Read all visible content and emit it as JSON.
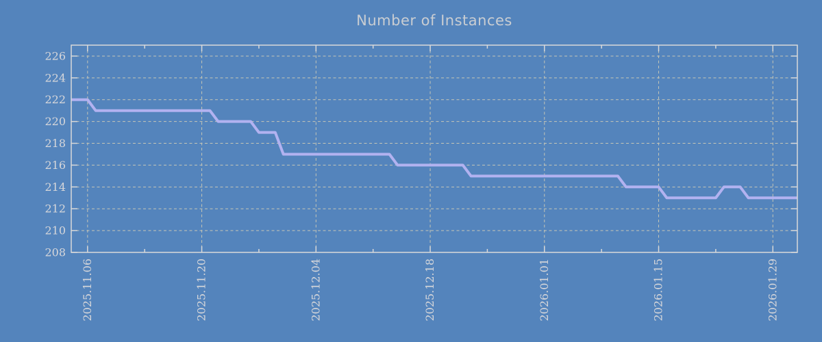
{
  "title": "Number of Instances",
  "colors": {
    "background": "#5484BC",
    "line": "#B2B2F0",
    "grid": "#C6C6B6",
    "spine": "#D9D9D9",
    "tick_label": "#D7D7DA",
    "title": "#C9CDD2"
  },
  "chart_data": {
    "type": "line",
    "title": "Number of Instances",
    "xlabel": "",
    "ylabel": "",
    "grid": true,
    "legend": null,
    "xlim": [
      "2025-11-04",
      "2026-02-01"
    ],
    "ylim": [
      208,
      227
    ],
    "y_ticks": [
      208,
      210,
      212,
      214,
      216,
      218,
      220,
      222,
      224,
      226
    ],
    "x_ticks": [
      {
        "date": "2025-11-06",
        "label": "2025.11.06"
      },
      {
        "date": "2025-11-20",
        "label": "2025.11.20"
      },
      {
        "date": "2025-12-04",
        "label": "2025.12.04"
      },
      {
        "date": "2025-12-18",
        "label": "2025.12.18"
      },
      {
        "date": "2026-01-01",
        "label": "2026.01.01"
      },
      {
        "date": "2026-01-15",
        "label": "2026.01.15"
      },
      {
        "date": "2026-01-29",
        "label": "2026.01.29"
      }
    ],
    "x_minor_ticks": [
      "2025-11-13",
      "2025-11-27",
      "2025-12-11",
      "2025-12-25",
      "2026-01-08",
      "2026-01-22"
    ],
    "series": [
      {
        "name": "instances",
        "color": "#B2B2F0",
        "interpolation": "linear-daily",
        "points": [
          [
            "2025-11-04",
            222
          ],
          [
            "2025-11-06",
            222
          ],
          [
            "2025-11-07",
            221
          ],
          [
            "2025-11-21",
            221
          ],
          [
            "2025-11-22",
            220
          ],
          [
            "2025-11-26",
            220
          ],
          [
            "2025-11-27",
            219
          ],
          [
            "2025-11-29",
            219
          ],
          [
            "2025-11-30",
            217
          ],
          [
            "2025-12-13",
            217
          ],
          [
            "2025-12-14",
            216
          ],
          [
            "2025-12-22",
            216
          ],
          [
            "2025-12-23",
            215
          ],
          [
            "2026-01-10",
            215
          ],
          [
            "2026-01-11",
            214
          ],
          [
            "2026-01-15",
            214
          ],
          [
            "2026-01-16",
            213
          ],
          [
            "2026-01-22",
            213
          ],
          [
            "2026-01-23",
            214
          ],
          [
            "2026-01-25",
            214
          ],
          [
            "2026-01-26",
            213
          ],
          [
            "2026-02-01",
            213
          ]
        ]
      }
    ]
  }
}
